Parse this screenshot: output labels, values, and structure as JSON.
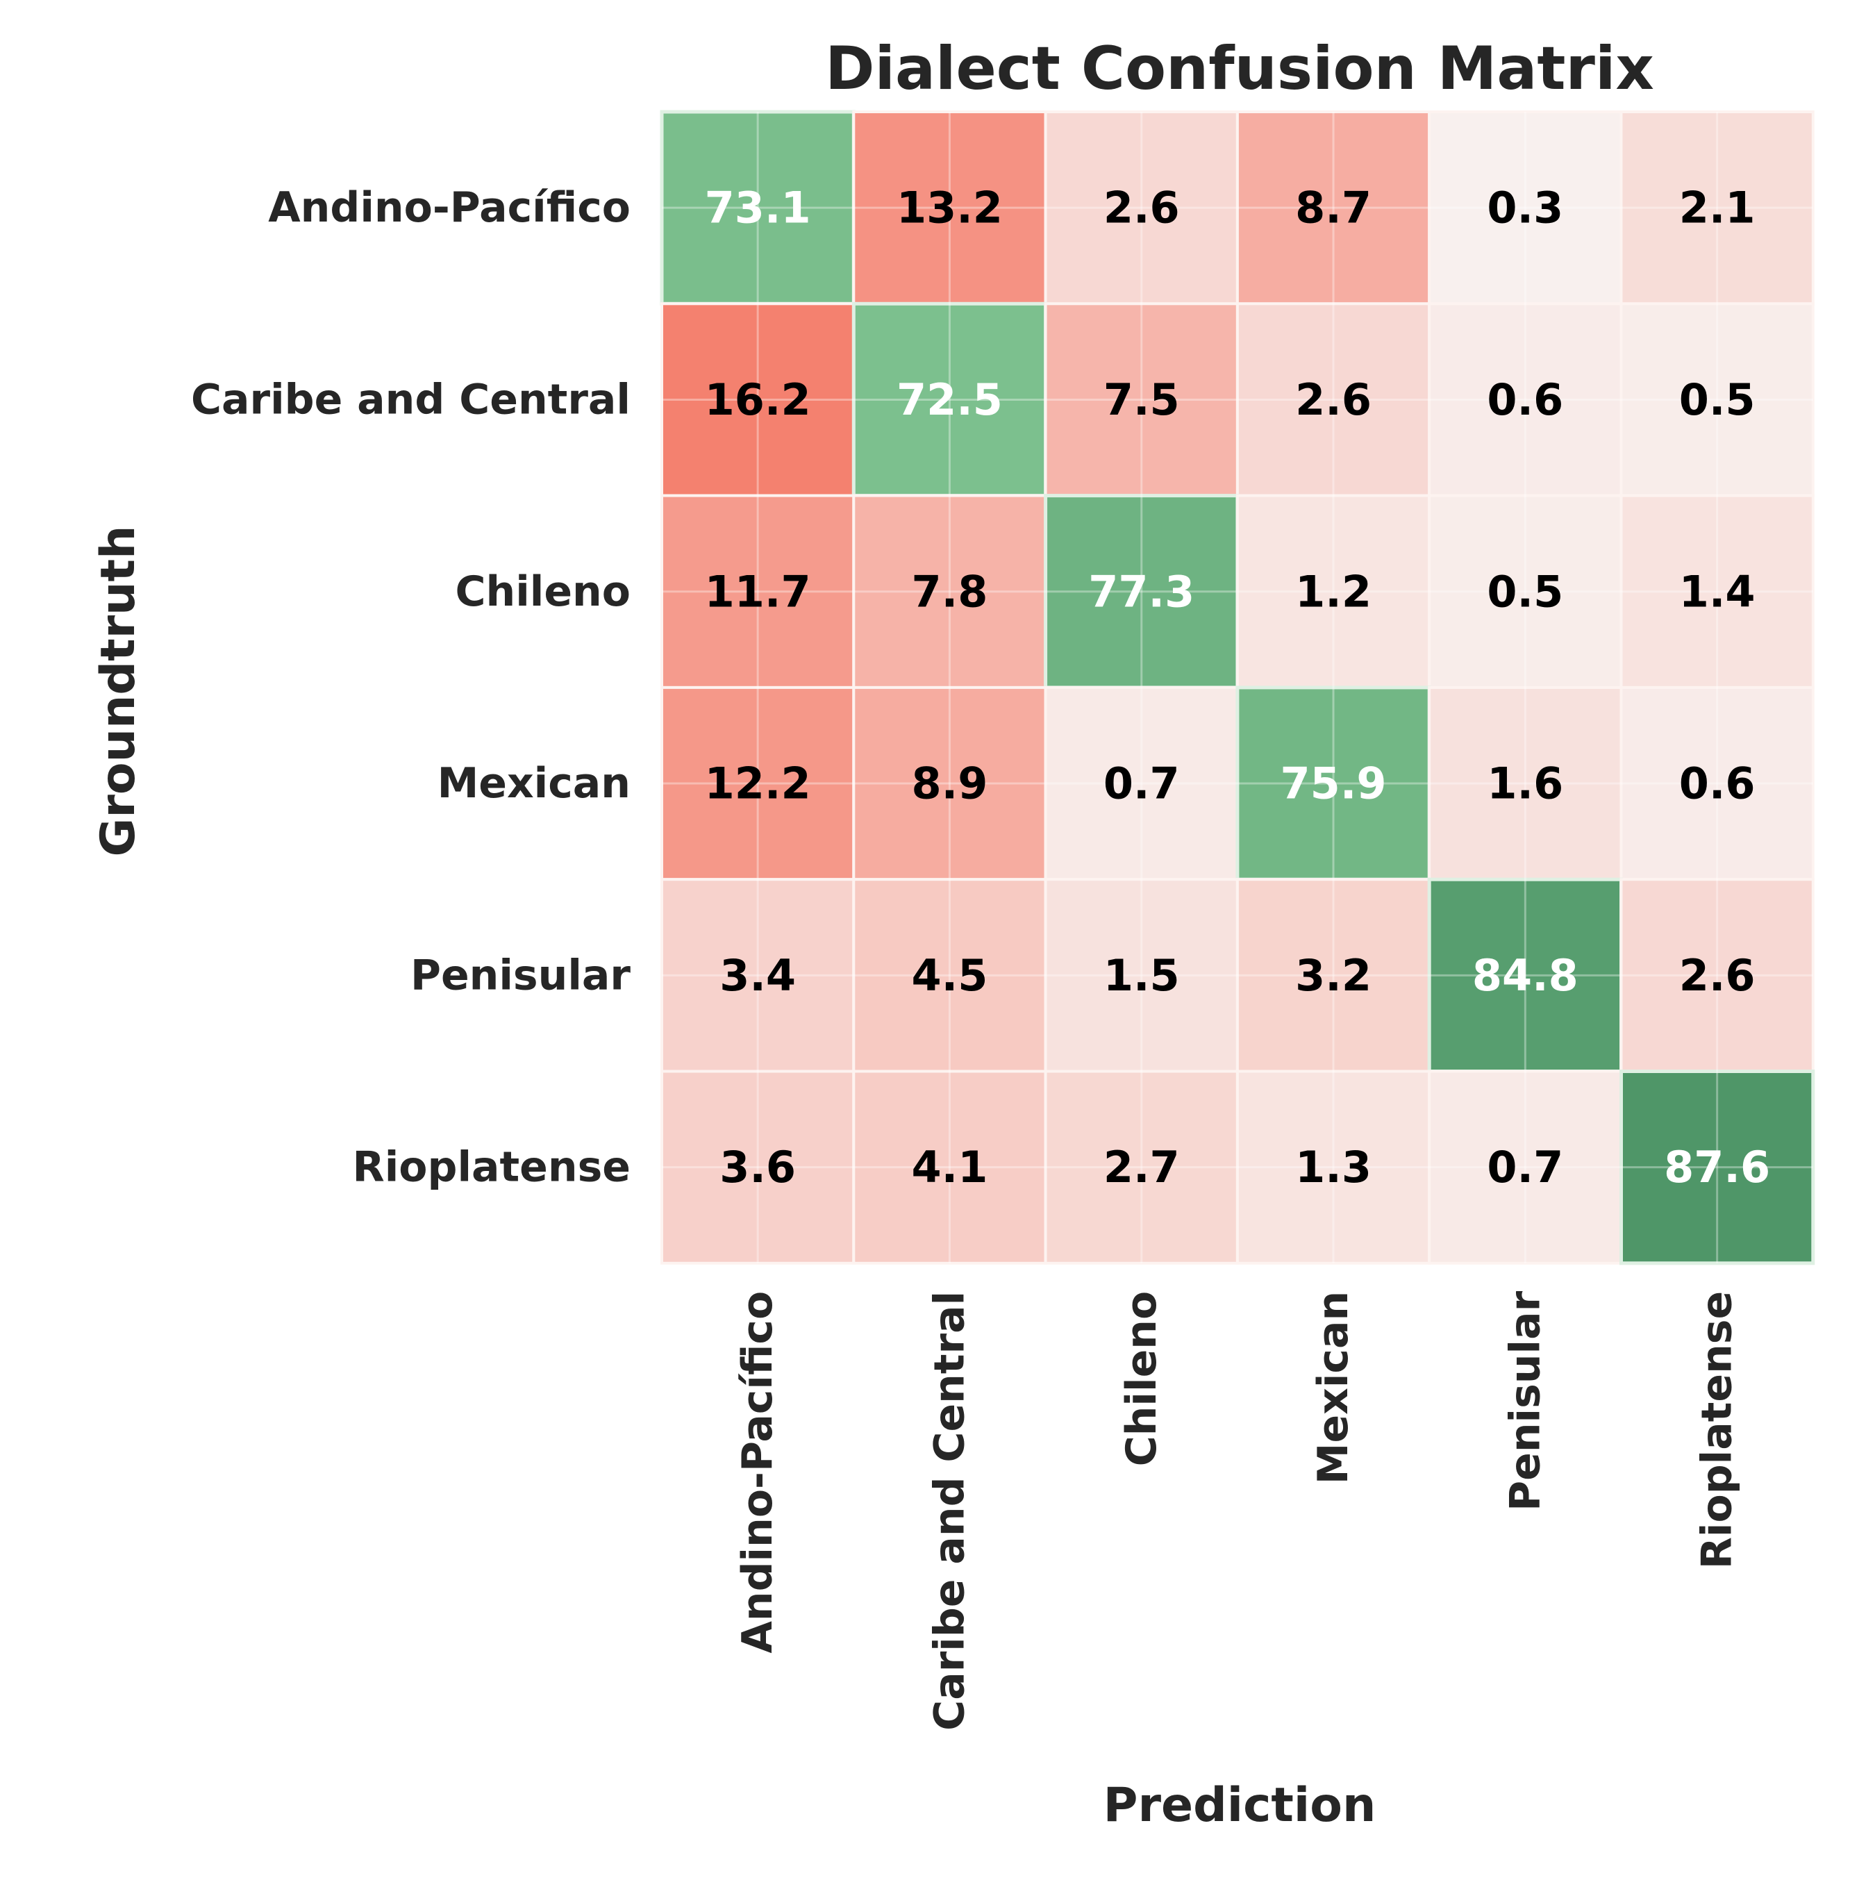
{
  "chart_data": {
    "type": "heatmap",
    "title": "Dialect Confusion Matrix",
    "xlabel": "Prediction",
    "ylabel": "Groundtruth",
    "x_categories": [
      "Andino-Pacífico",
      "Caribe and Central",
      "Chileno",
      "Mexican",
      "Penisular",
      "Rioplatense"
    ],
    "y_categories": [
      "Andino-Pacífico",
      "Caribe and Central",
      "Chileno",
      "Mexican",
      "Penisular",
      "Rioplatense"
    ],
    "values": [
      [
        73.1,
        13.2,
        2.6,
        8.7,
        0.3,
        2.1
      ],
      [
        16.2,
        72.5,
        7.5,
        2.6,
        0.6,
        0.5
      ],
      [
        11.7,
        7.8,
        77.3,
        1.2,
        0.5,
        1.4
      ],
      [
        12.2,
        8.9,
        0.7,
        75.9,
        1.6,
        0.6
      ],
      [
        3.4,
        4.5,
        1.5,
        3.2,
        84.8,
        2.6
      ],
      [
        3.6,
        4.1,
        2.7,
        1.3,
        0.7,
        87.6
      ]
    ],
    "value_format": "one decimal",
    "colors": {
      "diagonal_low": "#7cc08e",
      "diagonal_high": "#4f9668",
      "offdiag_low": "#f8f0ee",
      "offdiag_high": "#f4816f",
      "diagonal_text": "#ffffff",
      "offdiag_text": "#000000",
      "label_text": "#262626"
    },
    "grid": true
  }
}
